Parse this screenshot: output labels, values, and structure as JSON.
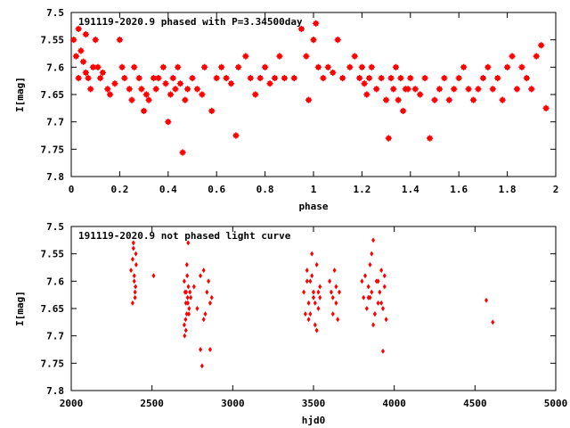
{
  "chart_data": [
    {
      "type": "scatter",
      "title": "191119-2020.9 phased with P=3.34500day",
      "xlabel": "phase",
      "ylabel": "I[mag]",
      "xlim": [
        0,
        2
      ],
      "ylim": [
        7.5,
        7.8
      ],
      "y_inverted": true,
      "xticks": [
        "0",
        "0.2",
        "0.4",
        "0.6",
        "0.8",
        "1",
        "1.2",
        "1.4",
        "1.6",
        "1.8",
        "2"
      ],
      "yticks": [
        "7.5",
        "7.55",
        "7.6",
        "7.65",
        "7.7",
        "7.75",
        "7.8"
      ],
      "marker_color": "#ff0000",
      "grid": false,
      "x": [
        0.01,
        0.02,
        0.03,
        0.03,
        0.04,
        0.05,
        0.06,
        0.06,
        0.07,
        0.08,
        0.09,
        0.1,
        0.11,
        0.12,
        0.13,
        0.15,
        0.16,
        0.18,
        0.2,
        0.21,
        0.22,
        0.24,
        0.25,
        0.26,
        0.28,
        0.29,
        0.3,
        0.31,
        0.32,
        0.34,
        0.35,
        0.36,
        0.38,
        0.39,
        0.4,
        0.41,
        0.42,
        0.43,
        0.44,
        0.45,
        0.46,
        0.47,
        0.48,
        0.5,
        0.52,
        0.54,
        0.55,
        0.58,
        0.6,
        0.62,
        0.64,
        0.66,
        0.68,
        0.69,
        0.72,
        0.74,
        0.76,
        0.78,
        0.8,
        0.82,
        0.84,
        0.86,
        0.88,
        0.92,
        0.95,
        0.97,
        0.98,
        1.0,
        1.01,
        1.02,
        1.04,
        1.06,
        1.08,
        1.1,
        1.12,
        1.15,
        1.17,
        1.19,
        1.2,
        1.21,
        1.22,
        1.23,
        1.24,
        1.26,
        1.28,
        1.3,
        1.31,
        1.32,
        1.33,
        1.34,
        1.35,
        1.36,
        1.37,
        1.38,
        1.39,
        1.4,
        1.42,
        1.44,
        1.46,
        1.48,
        1.5,
        1.52,
        1.54,
        1.56,
        1.58,
        1.6,
        1.62,
        1.64,
        1.66,
        1.68,
        1.7,
        1.72,
        1.74,
        1.76,
        1.78,
        1.8,
        1.82,
        1.84,
        1.86,
        1.88,
        1.9,
        1.92,
        1.94,
        1.96
      ],
      "y": [
        7.55,
        7.58,
        7.53,
        7.62,
        7.57,
        7.59,
        7.54,
        7.61,
        7.62,
        7.64,
        7.6,
        7.55,
        7.6,
        7.62,
        7.61,
        7.64,
        7.65,
        7.63,
        7.55,
        7.6,
        7.62,
        7.64,
        7.66,
        7.6,
        7.62,
        7.64,
        7.68,
        7.65,
        7.66,
        7.62,
        7.64,
        7.62,
        7.6,
        7.63,
        7.7,
        7.65,
        7.62,
        7.64,
        7.6,
        7.63,
        7.756,
        7.66,
        7.64,
        7.62,
        7.64,
        7.65,
        7.6,
        7.68,
        7.62,
        7.6,
        7.62,
        7.63,
        7.725,
        7.6,
        7.58,
        7.62,
        7.65,
        7.62,
        7.6,
        7.63,
        7.62,
        7.58,
        7.62,
        7.62,
        7.53,
        7.58,
        7.66,
        7.55,
        7.52,
        7.6,
        7.62,
        7.6,
        7.61,
        7.55,
        7.62,
        7.6,
        7.58,
        7.62,
        7.6,
        7.63,
        7.65,
        7.62,
        7.6,
        7.64,
        7.62,
        7.66,
        7.73,
        7.62,
        7.64,
        7.6,
        7.66,
        7.62,
        7.68,
        7.64,
        7.64,
        7.62,
        7.64,
        7.65,
        7.62,
        7.73,
        7.66,
        7.64,
        7.62,
        7.66,
        7.64,
        7.62,
        7.6,
        7.64,
        7.66,
        7.64,
        7.62,
        7.6,
        7.64,
        7.62,
        7.66,
        7.6,
        7.58,
        7.64,
        7.6,
        7.62,
        7.64,
        7.58,
        7.56,
        7.675
      ]
    },
    {
      "type": "scatter",
      "title": "191119-2020.9 not phased light curve",
      "xlabel": "hjd0",
      "ylabel": "I[mag]",
      "xlim": [
        2000,
        5000
      ],
      "ylim": [
        7.5,
        7.8
      ],
      "y_inverted": true,
      "xticks": [
        "2000",
        "2500",
        "3000",
        "3500",
        "4000",
        "4500",
        "5000"
      ],
      "yticks": [
        "7.5",
        "7.55",
        "7.6",
        "7.65",
        "7.7",
        "7.75",
        "7.8"
      ],
      "marker_color": "#ff0000",
      "grid": false,
      "x": [
        2370,
        2380,
        2385,
        2390,
        2395,
        2400,
        2380,
        2390,
        2398,
        2402,
        2385,
        2395,
        2510,
        2700,
        2705,
        2710,
        2715,
        2720,
        2725,
        2730,
        2700,
        2708,
        2712,
        2718,
        2722,
        2728,
        2735,
        2702,
        2710,
        2716,
        2724,
        2740,
        2760,
        2780,
        2800,
        2820,
        2840,
        2860,
        2800,
        2810,
        2830,
        2850,
        2870,
        2820,
        2860,
        3440,
        3450,
        3460,
        3470,
        3480,
        3490,
        3500,
        3510,
        3520,
        3530,
        3540,
        3460,
        3480,
        3500,
        3520,
        3540,
        3470,
        3490,
        3510,
        3530,
        3600,
        3610,
        3620,
        3630,
        3640,
        3650,
        3660,
        3620,
        3640,
        3800,
        3810,
        3820,
        3830,
        3840,
        3850,
        3860,
        3870,
        3880,
        3890,
        3900,
        3910,
        3920,
        3930,
        3940,
        3950,
        3840,
        3860,
        3880,
        3900,
        3920,
        3940,
        3850,
        3870,
        3930,
        4570,
        4610
      ],
      "y": [
        7.58,
        7.56,
        7.54,
        7.6,
        7.62,
        7.55,
        7.64,
        7.59,
        7.61,
        7.57,
        7.53,
        7.63,
        7.59,
        7.6,
        7.62,
        7.64,
        7.66,
        7.63,
        7.61,
        7.65,
        7.68,
        7.67,
        7.62,
        7.59,
        7.64,
        7.66,
        7.62,
        7.7,
        7.69,
        7.57,
        7.53,
        7.63,
        7.61,
        7.65,
        7.59,
        7.67,
        7.62,
        7.64,
        7.725,
        7.755,
        7.66,
        7.6,
        7.63,
        7.58,
        7.725,
        7.62,
        7.66,
        7.58,
        7.64,
        7.6,
        7.55,
        7.62,
        7.68,
        7.57,
        7.65,
        7.63,
        7.6,
        7.66,
        7.63,
        7.69,
        7.61,
        7.67,
        7.59,
        7.64,
        7.62,
        7.6,
        7.62,
        7.66,
        7.58,
        7.64,
        7.67,
        7.62,
        7.63,
        7.61,
        7.6,
        7.63,
        7.59,
        7.65,
        7.61,
        7.57,
        7.62,
        7.525,
        7.66,
        7.6,
        7.64,
        7.62,
        7.58,
        7.65,
        7.61,
        7.67,
        7.63,
        7.55,
        7.66,
        7.6,
        7.64,
        7.59,
        7.63,
        7.68,
        7.728,
        7.635,
        7.675
      ]
    }
  ]
}
